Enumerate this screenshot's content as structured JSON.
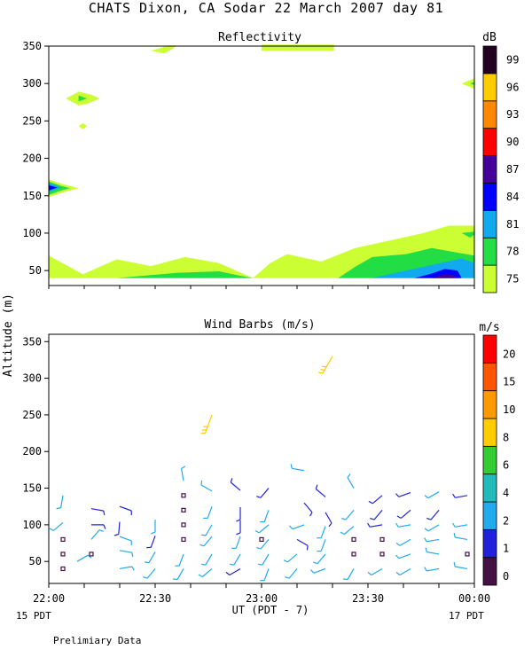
{
  "header": {
    "title": "CHATS Dixon, CA  Sodar  22 March 2007  day  81"
  },
  "footer": {
    "left_time_sub": "15 PDT",
    "right_time_sub": "17 PDT",
    "note": "Prelimiary Data"
  },
  "colors": {
    "frame": "#000000"
  },
  "chart_data": [
    {
      "type": "heatmap",
      "title": "Reflectivity",
      "ylabel": "Altitude (m)",
      "ylim": [
        30,
        350
      ],
      "yticks": [
        50,
        100,
        150,
        200,
        250,
        300,
        350
      ],
      "xticks": [],
      "colorbar": {
        "unit": "dB",
        "levels": [
          "75",
          "78",
          "81",
          "84",
          "87",
          "90",
          "93",
          "96",
          "99"
        ],
        "colors": [
          "#ccff33",
          "#22dd44",
          "#11aaee",
          "#0000ff",
          "#440099",
          "#ff0000",
          "#ff8800",
          "#ffcc00",
          "#220022"
        ]
      },
      "regions": [
        {
          "level": 0,
          "points": [
            [
              0,
              40
            ],
            [
              0,
              70
            ],
            [
              8,
              45
            ],
            [
              16,
              65
            ],
            [
              24,
              56
            ],
            [
              32,
              68
            ],
            [
              40,
              60
            ],
            [
              48,
              40
            ],
            [
              52,
              60
            ],
            [
              56,
              72
            ],
            [
              64,
              62
            ],
            [
              72,
              80
            ],
            [
              80,
              90
            ],
            [
              88,
              100
            ],
            [
              94,
              110
            ],
            [
              100,
              110
            ],
            [
              100,
              40
            ]
          ]
        },
        {
          "level": 1,
          "points": [
            [
              16,
              40
            ],
            [
              30,
              47
            ],
            [
              40,
              49
            ],
            [
              45,
              43
            ],
            [
              48,
              40
            ]
          ]
        },
        {
          "level": 1,
          "points": [
            [
              68,
              40
            ],
            [
              72,
              55
            ],
            [
              76,
              68
            ],
            [
              84,
              72
            ],
            [
              90,
              80
            ],
            [
              100,
              70
            ],
            [
              100,
              40
            ]
          ]
        },
        {
          "level": 1,
          "points": [
            [
              99,
              94
            ],
            [
              100,
              98
            ],
            [
              100,
              102
            ],
            [
              97,
              100
            ]
          ]
        },
        {
          "level": 2,
          "points": [
            [
              76,
              40
            ],
            [
              84,
              50
            ],
            [
              92,
              60
            ],
            [
              97,
              66
            ],
            [
              100,
              60
            ],
            [
              100,
              40
            ]
          ]
        },
        {
          "level": 3,
          "points": [
            [
              86,
              40
            ],
            [
              90,
              46
            ],
            [
              93,
              52
            ],
            [
              96,
              50
            ],
            [
              97,
              40
            ]
          ]
        },
        {
          "level": 4,
          "points": [
            [
              90,
              40
            ],
            [
              93,
              45
            ],
            [
              95,
              44
            ],
            [
              96,
              40
            ]
          ]
        },
        {
          "level": 0,
          "points": [
            [
              0,
              148
            ],
            [
              0,
              172
            ],
            [
              3,
              166
            ],
            [
              7,
              160
            ],
            [
              3,
              154
            ]
          ]
        },
        {
          "level": 1,
          "points": [
            [
              0,
              151
            ],
            [
              0,
              169
            ],
            [
              3,
              163
            ],
            [
              5,
              160
            ],
            [
              3,
              157
            ]
          ]
        },
        {
          "level": 2,
          "points": [
            [
              0,
              155
            ],
            [
              0,
              167
            ],
            [
              3,
              161
            ]
          ]
        },
        {
          "level": 3,
          "points": [
            [
              0,
              157
            ],
            [
              0,
              164
            ],
            [
              2,
              161
            ]
          ]
        },
        {
          "level": 0,
          "points": [
            [
              4,
              280
            ],
            [
              7,
              289
            ],
            [
              10,
              285
            ],
            [
              12,
              280
            ],
            [
              9,
              273
            ],
            [
              7,
              271
            ]
          ]
        },
        {
          "level": 1,
          "points": [
            [
              7,
              276
            ],
            [
              7,
              284
            ],
            [
              9,
              280
            ]
          ]
        },
        {
          "level": 0,
          "points": [
            [
              7,
              243
            ],
            [
              8,
              247
            ],
            [
              9,
              243
            ],
            [
              8,
              239
            ]
          ]
        },
        {
          "level": 0,
          "points": [
            [
              24,
              344
            ],
            [
              26,
              347
            ],
            [
              28,
              351
            ],
            [
              30,
              351
            ],
            [
              29,
              346
            ],
            [
              27,
              340
            ]
          ]
        },
        {
          "level": 0,
          "points": [
            [
              50,
              344
            ],
            [
              50,
              352
            ],
            [
              67,
              352
            ],
            [
              67,
              344
            ]
          ]
        },
        {
          "level": 0,
          "points": [
            [
              97,
              300
            ],
            [
              100,
              307
            ],
            [
              100,
              293
            ]
          ]
        },
        {
          "level": 1,
          "points": [
            [
              99,
              300
            ],
            [
              100,
              302
            ],
            [
              100,
              298
            ]
          ]
        }
      ]
    },
    {
      "type": "scatter",
      "title": "Wind Barbs (m/s)",
      "ylabel": "Altitude (m)",
      "ylim": [
        20,
        360
      ],
      "yticks": [
        50,
        100,
        150,
        200,
        250,
        300,
        350
      ],
      "xlabel": "UT  (PDT - 7)",
      "xticks": [
        "22:00",
        "22:30",
        "23:00",
        "23:30",
        "00:00"
      ],
      "colorbar": {
        "unit": "m/s",
        "levels": [
          "0",
          "1",
          "2",
          "4",
          "6",
          "8",
          "10",
          "15",
          "20"
        ],
        "colors": [
          "#441144",
          "#2222dd",
          "#22aaee",
          "#22bbbb",
          "#33cc33",
          "#ffcc00",
          "#ff9900",
          "#ff5500",
          "#ff0000"
        ]
      },
      "barbs": [
        {
          "x": 4,
          "y": 40,
          "speed": 0.5
        },
        {
          "x": 4,
          "y": 60,
          "speed": 0.5
        },
        {
          "x": 4,
          "y": 80,
          "speed": 0.5
        },
        {
          "x": 4,
          "y": 103,
          "speed": 2.4,
          "dir": 230
        },
        {
          "x": 4,
          "y": 140,
          "speed": 2.8,
          "dir": 190
        },
        {
          "x": 8,
          "y": 50,
          "speed": 2.5,
          "dir": 60
        },
        {
          "x": 12,
          "y": 60,
          "speed": 0.5
        },
        {
          "x": 12,
          "y": 80,
          "speed": 2.6,
          "dir": 40
        },
        {
          "x": 12,
          "y": 100,
          "speed": 1.8,
          "dir": 90
        },
        {
          "x": 12,
          "y": 122,
          "speed": 1.5,
          "dir": 100
        },
        {
          "x": 20,
          "y": 40,
          "speed": 2.5,
          "dir": 80
        },
        {
          "x": 20,
          "y": 65,
          "speed": 2.5,
          "dir": 100
        },
        {
          "x": 20,
          "y": 84,
          "speed": 2.5,
          "dir": 110
        },
        {
          "x": 20,
          "y": 104,
          "speed": 1.5,
          "dir": 185
        },
        {
          "x": 20,
          "y": 125,
          "speed": 1.5,
          "dir": 110
        },
        {
          "x": 30,
          "y": 40,
          "speed": 2.6,
          "dir": 220
        },
        {
          "x": 30,
          "y": 63,
          "speed": 2.4,
          "dir": 210
        },
        {
          "x": 30,
          "y": 85,
          "speed": 1.8,
          "dir": 200
        },
        {
          "x": 30,
          "y": 107,
          "speed": 2.5,
          "dir": 180
        },
        {
          "x": 38,
          "y": 40,
          "speed": 2.5,
          "dir": 210
        },
        {
          "x": 38,
          "y": 60,
          "speed": 2.5,
          "dir": 200
        },
        {
          "x": 38,
          "y": 80,
          "speed": 0.5
        },
        {
          "x": 38,
          "y": 100,
          "speed": 0.5
        },
        {
          "x": 38,
          "y": 120,
          "speed": 0.5
        },
        {
          "x": 38,
          "y": 140,
          "speed": 0.5
        },
        {
          "x": 38,
          "y": 160,
          "speed": 2.4,
          "dir": 350
        },
        {
          "x": 46,
          "y": 40,
          "speed": 2.6,
          "dir": 230
        },
        {
          "x": 46,
          "y": 60,
          "speed": 2.6,
          "dir": 210
        },
        {
          "x": 46,
          "y": 84,
          "speed": 2.5,
          "dir": 220
        },
        {
          "x": 46,
          "y": 100,
          "speed": 2.0,
          "dir": 210
        },
        {
          "x": 46,
          "y": 125,
          "speed": 2.0,
          "dir": 200
        },
        {
          "x": 46,
          "y": 146,
          "speed": 3.0,
          "dir": 300
        },
        {
          "x": 46,
          "y": 250,
          "speed": 9.0,
          "dir": 200
        },
        {
          "x": 54,
          "y": 40,
          "speed": 1.6,
          "dir": 240
        },
        {
          "x": 54,
          "y": 60,
          "speed": 3.0,
          "dir": 210
        },
        {
          "x": 54,
          "y": 84,
          "speed": 3.0,
          "dir": 200
        },
        {
          "x": 54,
          "y": 106,
          "speed": 1.5,
          "dir": 180
        },
        {
          "x": 54,
          "y": 124,
          "speed": 1.6,
          "dir": 180
        },
        {
          "x": 54,
          "y": 147,
          "speed": 1.6,
          "dir": 310
        },
        {
          "x": 60,
          "y": 80,
          "speed": 0.5
        },
        {
          "x": 62,
          "y": 40,
          "speed": 2.5,
          "dir": 200
        },
        {
          "x": 62,
          "y": 60,
          "speed": 2.6,
          "dir": 210
        },
        {
          "x": 62,
          "y": 80,
          "speed": 2.5,
          "dir": 220
        },
        {
          "x": 62,
          "y": 100,
          "speed": 3.0,
          "dir": 230
        },
        {
          "x": 62,
          "y": 120,
          "speed": 2.5,
          "dir": 200
        },
        {
          "x": 62,
          "y": 150,
          "speed": 1.6,
          "dir": 220
        },
        {
          "x": 70,
          "y": 40,
          "speed": 3.5,
          "dir": 220
        },
        {
          "x": 70,
          "y": 60,
          "speed": 3.5,
          "dir": 230
        },
        {
          "x": 70,
          "y": 80,
          "speed": 1.5,
          "dir": 120
        },
        {
          "x": 72,
          "y": 100,
          "speed": 2.5,
          "dir": 250
        },
        {
          "x": 72,
          "y": 130,
          "speed": 1.5,
          "dir": 140
        },
        {
          "x": 72,
          "y": 174,
          "speed": 2.4,
          "dir": 280
        },
        {
          "x": 78,
          "y": 40,
          "speed": 3.5,
          "dir": 250
        },
        {
          "x": 78,
          "y": 60,
          "speed": 2.5,
          "dir": 220
        },
        {
          "x": 78,
          "y": 80,
          "speed": 2.5,
          "dir": 200
        },
        {
          "x": 78,
          "y": 98,
          "speed": 2.5,
          "dir": 200
        },
        {
          "x": 78,
          "y": 117,
          "speed": 1.5,
          "dir": 150
        },
        {
          "x": 78,
          "y": 138,
          "speed": 1.5,
          "dir": 310
        },
        {
          "x": 80,
          "y": 330,
          "speed": 9.5,
          "dir": 210
        },
        {
          "x": 86,
          "y": 40,
          "speed": 2.5,
          "dir": 210
        },
        {
          "x": 86,
          "y": 60,
          "speed": 0.5
        },
        {
          "x": 86,
          "y": 80,
          "speed": 0.5
        },
        {
          "x": 86,
          "y": 98,
          "speed": 2.5,
          "dir": 230
        },
        {
          "x": 86,
          "y": 120,
          "speed": 2.6,
          "dir": 220
        },
        {
          "x": 86,
          "y": 150,
          "speed": 2.5,
          "dir": 330
        },
        {
          "x": 94,
          "y": 40,
          "speed": 2.5,
          "dir": 240
        },
        {
          "x": 94,
          "y": 60,
          "speed": 0.5
        },
        {
          "x": 94,
          "y": 80,
          "speed": 0.5
        },
        {
          "x": 94,
          "y": 100,
          "speed": 1.5,
          "dir": 260
        },
        {
          "x": 94,
          "y": 120,
          "speed": 1.6,
          "dir": 220
        },
        {
          "x": 94,
          "y": 140,
          "speed": 1.5,
          "dir": 230
        },
        {
          "x": 102,
          "y": 40,
          "speed": 3.5,
          "dir": 240
        },
        {
          "x": 102,
          "y": 60,
          "speed": 2.5,
          "dir": 250
        },
        {
          "x": 102,
          "y": 80,
          "speed": 2.6,
          "dir": 240
        },
        {
          "x": 102,
          "y": 100,
          "speed": 2.5,
          "dir": 260
        },
        {
          "x": 102,
          "y": 120,
          "speed": 1.5,
          "dir": 230
        },
        {
          "x": 102,
          "y": 144,
          "speed": 1.5,
          "dir": 250
        },
        {
          "x": 110,
          "y": 40,
          "speed": 2.5,
          "dir": 260
        },
        {
          "x": 110,
          "y": 60,
          "speed": 2.6,
          "dir": 280
        },
        {
          "x": 110,
          "y": 80,
          "speed": 2.6,
          "dir": 260
        },
        {
          "x": 110,
          "y": 100,
          "speed": 2.6,
          "dir": 240
        },
        {
          "x": 110,
          "y": 120,
          "speed": 1.6,
          "dir": 220
        },
        {
          "x": 110,
          "y": 145,
          "speed": 2.4,
          "dir": 240
        },
        {
          "x": 118,
          "y": 40,
          "speed": 2.5,
          "dir": 280
        },
        {
          "x": 118,
          "y": 60,
          "speed": 0.5
        },
        {
          "x": 118,
          "y": 80,
          "speed": 2.6,
          "dir": 280
        },
        {
          "x": 118,
          "y": 100,
          "speed": 2.4,
          "dir": 260
        },
        {
          "x": 118,
          "y": 140,
          "speed": 1.5,
          "dir": 260
        }
      ]
    }
  ]
}
